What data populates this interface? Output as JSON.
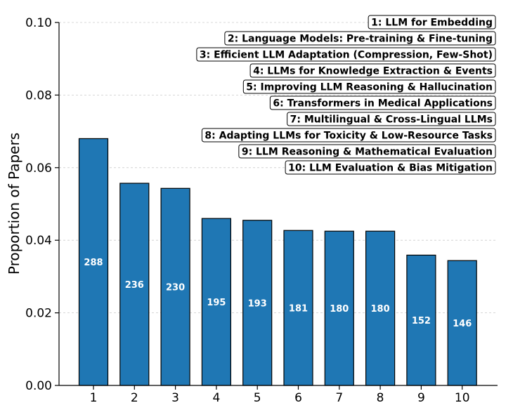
{
  "chart_data": {
    "type": "bar",
    "categories": [
      "1",
      "2",
      "3",
      "4",
      "5",
      "6",
      "7",
      "8",
      "9",
      "10"
    ],
    "values": [
      0.068,
      0.0557,
      0.0543,
      0.046,
      0.0455,
      0.0427,
      0.0425,
      0.0425,
      0.0359,
      0.0344
    ],
    "counts": [
      "288",
      "236",
      "230",
      "195",
      "193",
      "181",
      "180",
      "180",
      "152",
      "146"
    ],
    "title": "",
    "xlabel": "",
    "ylabel": "Proportion of Papers",
    "ylim": [
      0,
      0.1
    ],
    "yticks": [
      0.0,
      0.02,
      0.04,
      0.06,
      0.08,
      0.1
    ],
    "ytick_labels": [
      "0.00",
      "0.02",
      "0.04",
      "0.06",
      "0.08",
      "0.10"
    ],
    "grid": "horizontal dashed",
    "legend_placement": "top-right",
    "legend": [
      "1: LLM for Embedding",
      "2: Language Models: Pre-training & Fine-tuning",
      "3: Efficient LLM Adaptation (Compression, Few-Shot)",
      "4: LLMs for Knowledge Extraction & Events",
      "5: Improving LLM Reasoning & Hallucination",
      "6: Transformers in Medical Applications",
      "7: Multilingual & Cross-Lingual LLMs",
      "8: Adapting LLMs for Toxicity & Low-Resource Tasks",
      "9: LLM Reasoning & Mathematical Evaluation",
      "10: LLM Evaluation & Bias Mitigation"
    ],
    "colors": {
      "bar": "#1f77b4",
      "edge": "#000000",
      "grid": "#cccccc"
    }
  }
}
